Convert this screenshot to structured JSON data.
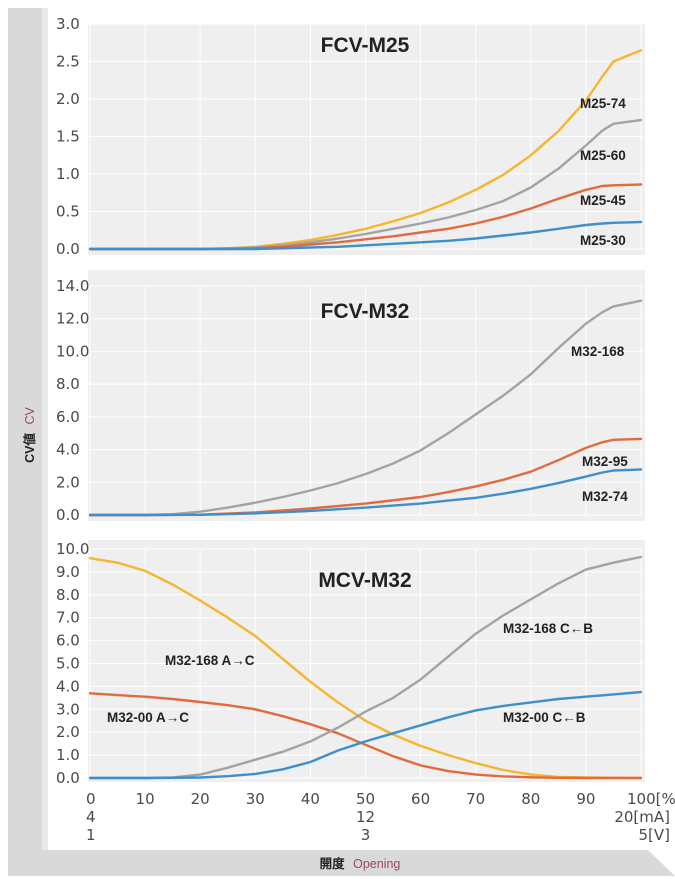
{
  "colors": {
    "yellow": "#F5B52E",
    "gray": "#A3A3A3",
    "orange": "#E06B3C",
    "blue": "#3E8FCC",
    "panel_bg": "#EFEFEF",
    "frame": "#D9D9D9"
  },
  "y_axis_title": {
    "main": "CV値",
    "sub": "CV"
  },
  "x_axis_title": {
    "main": "開度",
    "sub": "Opening"
  },
  "x_ticks": {
    "percent": [
      "0",
      "10",
      "20",
      "30",
      "40",
      "50",
      "60",
      "70",
      "80",
      "90",
      "100[%]"
    ],
    "mA": {
      "left": "4",
      "mid": "12",
      "right": "20[mA]"
    },
    "V": {
      "left": "1",
      "mid": "3",
      "right": "5[V]"
    }
  },
  "chart_data": [
    {
      "type": "line",
      "title": "FCV-M25",
      "xlabel": "開度 Opening",
      "ylabel": "CV値 CV",
      "xlim": [
        0,
        100
      ],
      "ylim": [
        0,
        3.0
      ],
      "yticks": [
        "3.0",
        "2.5",
        "2.0",
        "1.5",
        "1.0",
        "0.5",
        "0.0"
      ],
      "series": [
        {
          "name": "M25-74",
          "color": "yellow",
          "x": [
            0,
            10,
            20,
            25,
            30,
            35,
            40,
            45,
            50,
            55,
            60,
            65,
            70,
            75,
            80,
            85,
            90,
            93,
            95,
            100
          ],
          "y": [
            0,
            0,
            0,
            0.01,
            0.03,
            0.07,
            0.12,
            0.19,
            0.27,
            0.37,
            0.48,
            0.62,
            0.79,
            0.99,
            1.25,
            1.57,
            1.98,
            2.3,
            2.5,
            2.65
          ]
        },
        {
          "name": "M25-60",
          "color": "gray",
          "x": [
            0,
            10,
            20,
            25,
            30,
            35,
            40,
            45,
            50,
            55,
            60,
            65,
            70,
            75,
            80,
            85,
            90,
            93,
            95,
            100
          ],
          "y": [
            0,
            0,
            0,
            0.01,
            0.02,
            0.05,
            0.09,
            0.14,
            0.2,
            0.27,
            0.34,
            0.42,
            0.52,
            0.64,
            0.82,
            1.07,
            1.38,
            1.58,
            1.67,
            1.72
          ]
        },
        {
          "name": "M25-45",
          "color": "orange",
          "x": [
            0,
            10,
            20,
            25,
            30,
            35,
            40,
            45,
            50,
            55,
            60,
            65,
            70,
            75,
            80,
            85,
            90,
            93,
            95,
            100
          ],
          "y": [
            0,
            0,
            0,
            0,
            0.01,
            0.03,
            0.06,
            0.09,
            0.13,
            0.17,
            0.22,
            0.27,
            0.34,
            0.43,
            0.54,
            0.67,
            0.79,
            0.84,
            0.85,
            0.86
          ]
        },
        {
          "name": "M25-30",
          "color": "blue",
          "x": [
            0,
            10,
            20,
            25,
            30,
            35,
            40,
            45,
            50,
            55,
            60,
            65,
            70,
            75,
            80,
            85,
            90,
            93,
            95,
            100
          ],
          "y": [
            0,
            0,
            0,
            0,
            0,
            0.01,
            0.02,
            0.03,
            0.05,
            0.07,
            0.09,
            0.11,
            0.14,
            0.18,
            0.22,
            0.27,
            0.32,
            0.34,
            0.35,
            0.36
          ]
        }
      ]
    },
    {
      "type": "line",
      "title": "FCV-M32",
      "xlabel": "開度 Opening",
      "ylabel": "CV値 CV",
      "xlim": [
        0,
        100
      ],
      "ylim": [
        0,
        14.0
      ],
      "yticks": [
        "14.0",
        "12.0",
        "10.0",
        "8.0",
        "6.0",
        "4.0",
        "2.0",
        "0.0"
      ],
      "series": [
        {
          "name": "M32-168",
          "color": "gray",
          "x": [
            0,
            10,
            15,
            20,
            25,
            30,
            35,
            40,
            45,
            50,
            55,
            60,
            65,
            70,
            75,
            80,
            85,
            90,
            93,
            95,
            100
          ],
          "y": [
            0,
            0,
            0.05,
            0.2,
            0.45,
            0.75,
            1.1,
            1.5,
            1.95,
            2.5,
            3.15,
            3.95,
            5,
            6.15,
            7.3,
            8.6,
            10.2,
            11.7,
            12.4,
            12.75,
            13.1
          ]
        },
        {
          "name": "M32-95",
          "color": "orange",
          "x": [
            0,
            10,
            20,
            30,
            40,
            50,
            60,
            65,
            70,
            75,
            80,
            85,
            90,
            93,
            95,
            100
          ],
          "y": [
            0,
            0,
            0.02,
            0.15,
            0.4,
            0.7,
            1.1,
            1.4,
            1.75,
            2.15,
            2.65,
            3.35,
            4.1,
            4.45,
            4.6,
            4.65
          ]
        },
        {
          "name": "M32-74",
          "color": "blue",
          "x": [
            0,
            10,
            20,
            30,
            40,
            50,
            60,
            65,
            70,
            75,
            80,
            85,
            90,
            93,
            95,
            100
          ],
          "y": [
            0,
            0,
            0.01,
            0.1,
            0.25,
            0.45,
            0.7,
            0.88,
            1.05,
            1.3,
            1.6,
            1.95,
            2.35,
            2.6,
            2.72,
            2.78
          ]
        }
      ]
    },
    {
      "type": "line",
      "title": "MCV-M32",
      "xlabel": "開度 Opening",
      "ylabel": "CV値 CV",
      "xlim": [
        0,
        100
      ],
      "ylim": [
        0,
        10.0
      ],
      "yticks": [
        "10.0",
        "9.0",
        "8.0",
        "7.0",
        "6.0",
        "5.0",
        "4.0",
        "3.0",
        "2.0",
        "1.0",
        "0.0"
      ],
      "series": [
        {
          "name": "M32-168 A→C",
          "color": "yellow",
          "x": [
            0,
            5,
            10,
            15,
            20,
            25,
            30,
            35,
            40,
            45,
            50,
            55,
            60,
            65,
            70,
            75,
            80,
            85,
            90,
            95,
            100
          ],
          "y": [
            9.6,
            9.4,
            9.05,
            8.45,
            7.75,
            7,
            6.2,
            5.2,
            4.2,
            3.3,
            2.5,
            1.9,
            1.4,
            1,
            0.65,
            0.35,
            0.15,
            0.05,
            0.02,
            0.01,
            0
          ]
        },
        {
          "name": "M32-00 A→C",
          "color": "orange",
          "x": [
            0,
            5,
            10,
            15,
            20,
            25,
            30,
            35,
            40,
            45,
            50,
            55,
            60,
            65,
            70,
            75,
            80,
            85,
            90,
            95,
            100
          ],
          "y": [
            3.7,
            3.62,
            3.55,
            3.45,
            3.32,
            3.18,
            3,
            2.7,
            2.35,
            1.95,
            1.45,
            0.95,
            0.55,
            0.3,
            0.15,
            0.07,
            0.03,
            0.01,
            0,
            0,
            0
          ]
        },
        {
          "name": "M32-168 C←B",
          "color": "gray",
          "x": [
            0,
            10,
            15,
            20,
            25,
            30,
            35,
            40,
            45,
            50,
            55,
            60,
            65,
            70,
            75,
            80,
            85,
            90,
            95,
            100
          ],
          "y": [
            0,
            0,
            0.02,
            0.15,
            0.45,
            0.8,
            1.15,
            1.6,
            2.2,
            2.9,
            3.5,
            4.3,
            5.3,
            6.3,
            7.1,
            7.8,
            8.5,
            9.1,
            9.4,
            9.65
          ]
        },
        {
          "name": "M32-00 C←B",
          "color": "blue",
          "x": [
            0,
            10,
            20,
            25,
            30,
            35,
            40,
            45,
            50,
            55,
            60,
            65,
            70,
            75,
            80,
            85,
            90,
            95,
            100
          ],
          "y": [
            0,
            0,
            0.02,
            0.08,
            0.18,
            0.38,
            0.7,
            1.2,
            1.6,
            1.95,
            2.3,
            2.65,
            2.95,
            3.15,
            3.3,
            3.45,
            3.55,
            3.65,
            3.75
          ]
        }
      ]
    }
  ]
}
